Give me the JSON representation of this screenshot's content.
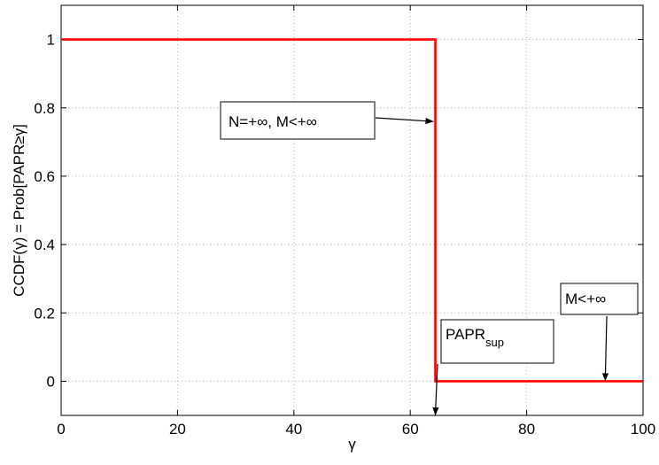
{
  "chart_data": {
    "type": "line",
    "title": "",
    "xlabel": "γ",
    "ylabel": "CCDF(γ) = Prob[PAPR≥γ]",
    "xlim": [
      0,
      100
    ],
    "ylim": [
      -0.1,
      1.1
    ],
    "xticks": [
      0,
      20,
      40,
      60,
      80,
      100
    ],
    "yticks": [
      0,
      0.2,
      0.4,
      0.6,
      0.8,
      1
    ],
    "xtick_labels": [
      "0",
      "20",
      "40",
      "60",
      "80",
      "100"
    ],
    "ytick_labels": [
      "0",
      "0.2",
      "0.4",
      "0.6",
      "0.8",
      "1"
    ],
    "grid": true,
    "series": [
      {
        "color": "#ff0000",
        "x": [
          0,
          64.3,
          64.3,
          100
        ],
        "y": [
          1,
          1,
          0,
          0
        ]
      }
    ],
    "annotations": [
      {
        "text": "N=+∞, M<+∞",
        "subscript": "",
        "arrow_to": [
          64.0,
          0.76
        ]
      },
      {
        "text": "PAPR",
        "subscript": "sup",
        "arrow_to": [
          64.3,
          -0.1
        ]
      },
      {
        "text": "M<+∞",
        "subscript": "",
        "arrow_to": [
          93.5,
          0.0
        ]
      }
    ]
  }
}
